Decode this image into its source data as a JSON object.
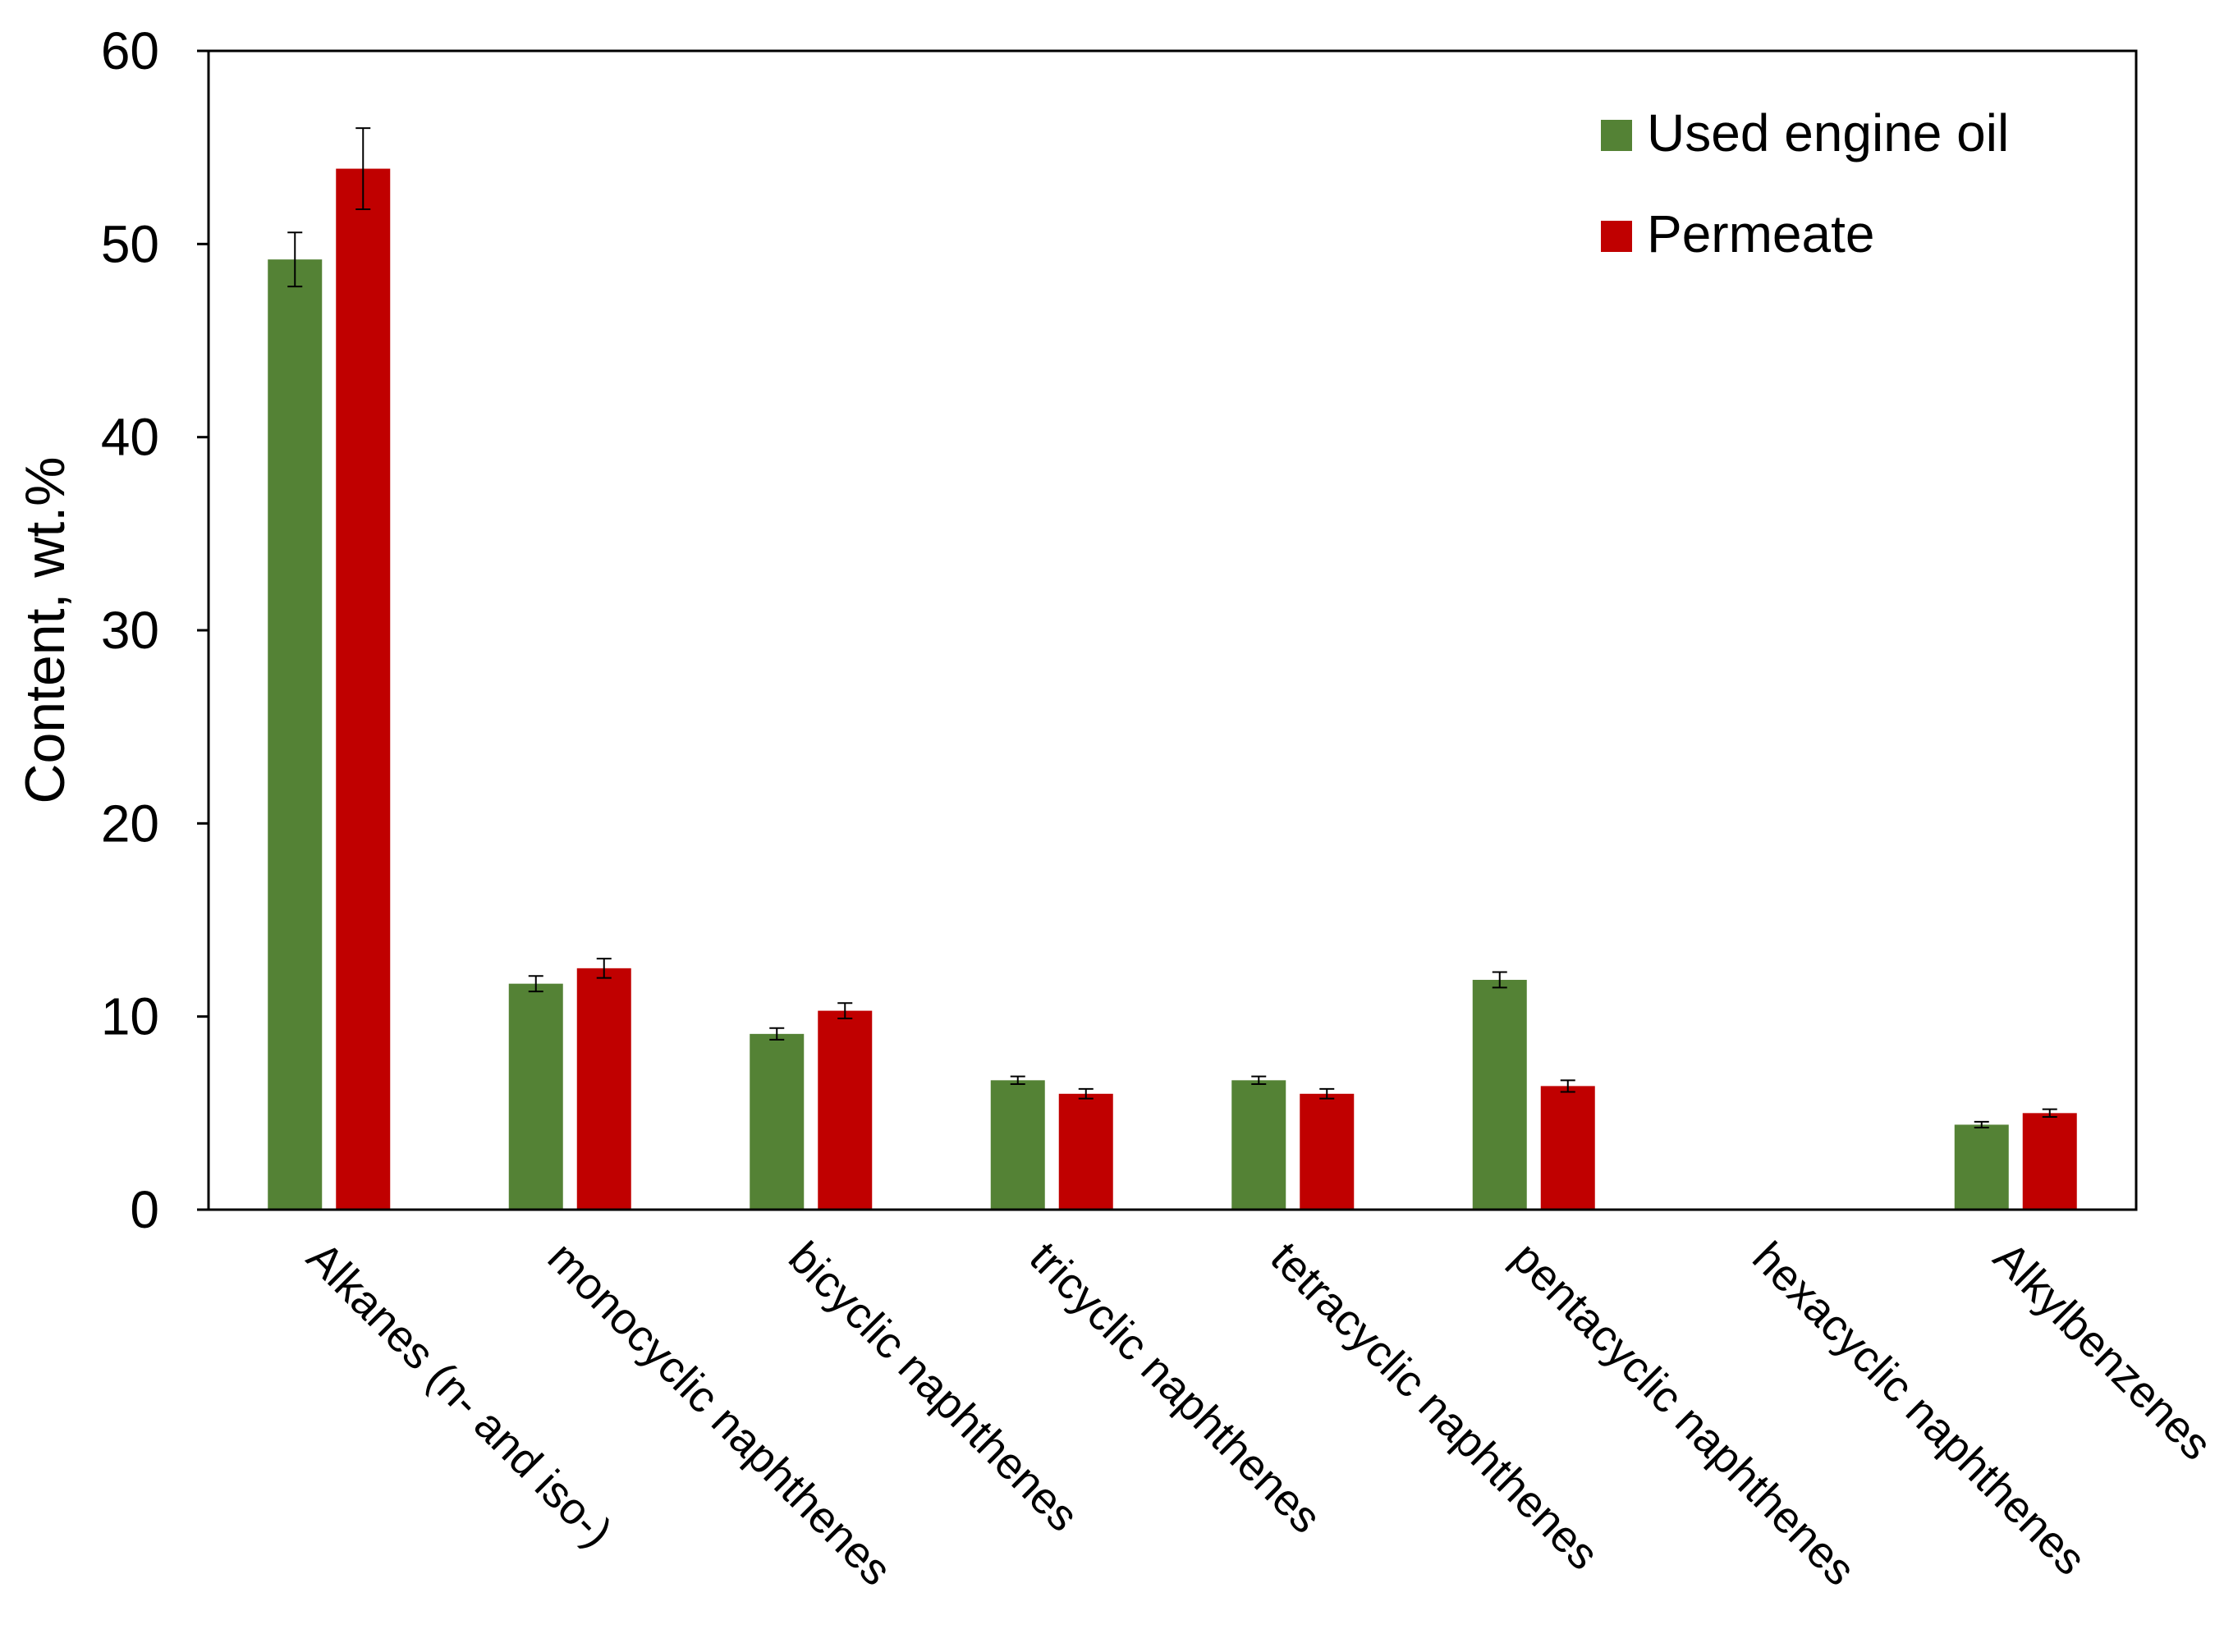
{
  "chart_data": {
    "type": "bar",
    "title": "",
    "xlabel": "",
    "ylabel": "Content, wt.%",
    "ylim": [
      0,
      60
    ],
    "yticks": [
      0,
      10,
      20,
      30,
      40,
      50,
      60
    ],
    "grid": false,
    "legend_position": "top-right",
    "categories": [
      "Alkanes (n- and iso-)",
      "monocyclic naphthenes",
      "bicyclic naphthenes",
      "tricyclic naphthenes",
      "tetracyclic naphthenes",
      "pentacyclic naphthenes",
      "hexacyclic naphthenes",
      "Alkylbenzenes"
    ],
    "series": [
      {
        "name": "Used engine oil",
        "color": "#548235",
        "values": [
          49.2,
          11.7,
          9.1,
          6.7,
          6.7,
          11.9,
          0,
          4.4
        ],
        "errors": [
          1.4,
          0.4,
          0.3,
          0.2,
          0.2,
          0.4,
          0,
          0.15
        ]
      },
      {
        "name": "Permeate",
        "color": "#c00000",
        "values": [
          53.9,
          12.5,
          10.3,
          6.0,
          6.0,
          6.4,
          0,
          5.0
        ],
        "errors": [
          2.1,
          0.5,
          0.4,
          0.25,
          0.25,
          0.3,
          0,
          0.2
        ]
      }
    ]
  }
}
